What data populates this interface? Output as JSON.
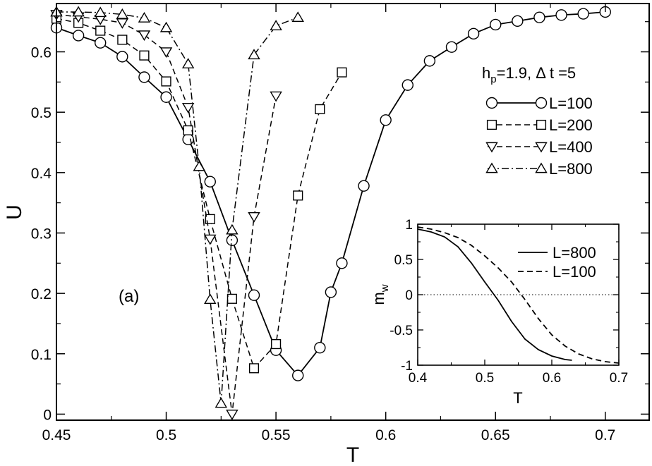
{
  "chart_data": [
    {
      "type": "line",
      "xlabel": "T",
      "ylabel": "U",
      "xlim": [
        0.45,
        0.72
      ],
      "ylim": [
        -0.01,
        0.68
      ],
      "xticks": [
        "0.45",
        "0.5",
        "0.55",
        "0.6",
        "0.65",
        "0.7"
      ],
      "yticks": [
        "0",
        "0.1",
        "0.2",
        "0.3",
        "0.4",
        "0.5",
        "0.6"
      ],
      "legend_title": "h_p=1.9, Δ t =5",
      "legend_title_parts": {
        "h": "h",
        "sub": "p",
        "rest": "=1.9, Δ t =5"
      },
      "legend_position": "upper-right",
      "annotation": "(a)",
      "series": [
        {
          "name": "L=100",
          "marker": "circle",
          "style": "solid",
          "x": [
            0.45,
            0.46,
            0.47,
            0.48,
            0.49,
            0.5,
            0.51,
            0.52,
            0.53,
            0.54,
            0.55,
            0.56,
            0.57,
            0.575,
            0.58,
            0.59,
            0.6,
            0.61,
            0.62,
            0.63,
            0.64,
            0.65,
            0.66,
            0.67,
            0.68,
            0.69,
            0.7
          ],
          "y": [
            0.64,
            0.627,
            0.615,
            0.592,
            0.558,
            0.525,
            0.455,
            0.385,
            0.288,
            0.197,
            0.106,
            0.064,
            0.11,
            0.202,
            0.25,
            0.378,
            0.487,
            0.545,
            0.585,
            0.608,
            0.63,
            0.645,
            0.651,
            0.657,
            0.661,
            0.663,
            0.666
          ]
        },
        {
          "name": "L=200",
          "marker": "square",
          "style": "dashed",
          "x": [
            0.45,
            0.46,
            0.47,
            0.48,
            0.49,
            0.5,
            0.51,
            0.52,
            0.53,
            0.54,
            0.55,
            0.56,
            0.57,
            0.58
          ],
          "y": [
            0.655,
            0.648,
            0.635,
            0.62,
            0.594,
            0.551,
            0.47,
            0.323,
            0.191,
            0.076,
            0.116,
            0.362,
            0.505,
            0.566
          ]
        },
        {
          "name": "L=400",
          "marker": "triangle-down",
          "style": "dashed",
          "x": [
            0.45,
            0.46,
            0.47,
            0.48,
            0.49,
            0.5,
            0.51,
            0.52,
            0.53,
            0.54,
            0.55
          ],
          "y": [
            0.662,
            0.658,
            0.654,
            0.648,
            0.628,
            0.6,
            0.508,
            0.29,
            0.0,
            0.327,
            0.527
          ]
        },
        {
          "name": "L=800",
          "marker": "triangle-up",
          "style": "dashdot",
          "x": [
            0.45,
            0.46,
            0.47,
            0.48,
            0.49,
            0.5,
            0.51,
            0.515,
            0.52,
            0.525,
            0.53,
            0.54,
            0.55,
            0.56
          ],
          "y": [
            0.666,
            0.666,
            0.665,
            0.662,
            0.656,
            0.64,
            0.58,
            0.41,
            0.19,
            0.018,
            0.305,
            0.595,
            0.643,
            0.657
          ]
        }
      ]
    },
    {
      "type": "line",
      "role": "inset",
      "xlabel": "T",
      "ylabel": "m_w",
      "ylabel_parts": {
        "main": "m",
        "sub": "w"
      },
      "xlim": [
        0.4,
        0.7
      ],
      "ylim": [
        -1,
        1
      ],
      "xticks": [
        "0.4",
        "0.5",
        "0.6",
        "0.7"
      ],
      "yticks": [
        "-1",
        "-0.5",
        "0",
        "0.5",
        "1"
      ],
      "zero_line": true,
      "legend_position": "upper-right",
      "series": [
        {
          "name": "L=800",
          "style": "solid",
          "x": [
            0.4,
            0.42,
            0.44,
            0.46,
            0.48,
            0.5,
            0.52,
            0.54,
            0.56,
            0.58,
            0.6,
            0.62,
            0.63
          ],
          "y": [
            0.93,
            0.89,
            0.82,
            0.68,
            0.45,
            0.18,
            -0.08,
            -0.38,
            -0.63,
            -0.78,
            -0.87,
            -0.92,
            -0.93
          ]
        },
        {
          "name": "L=100",
          "style": "dashed",
          "x": [
            0.4,
            0.42,
            0.44,
            0.46,
            0.48,
            0.5,
            0.52,
            0.54,
            0.56,
            0.58,
            0.6,
            0.62,
            0.64,
            0.66,
            0.68,
            0.7
          ],
          "y": [
            0.96,
            0.93,
            0.88,
            0.81,
            0.7,
            0.55,
            0.38,
            0.18,
            -0.07,
            -0.34,
            -0.57,
            -0.73,
            -0.84,
            -0.91,
            -0.95,
            -0.97
          ]
        }
      ]
    }
  ]
}
